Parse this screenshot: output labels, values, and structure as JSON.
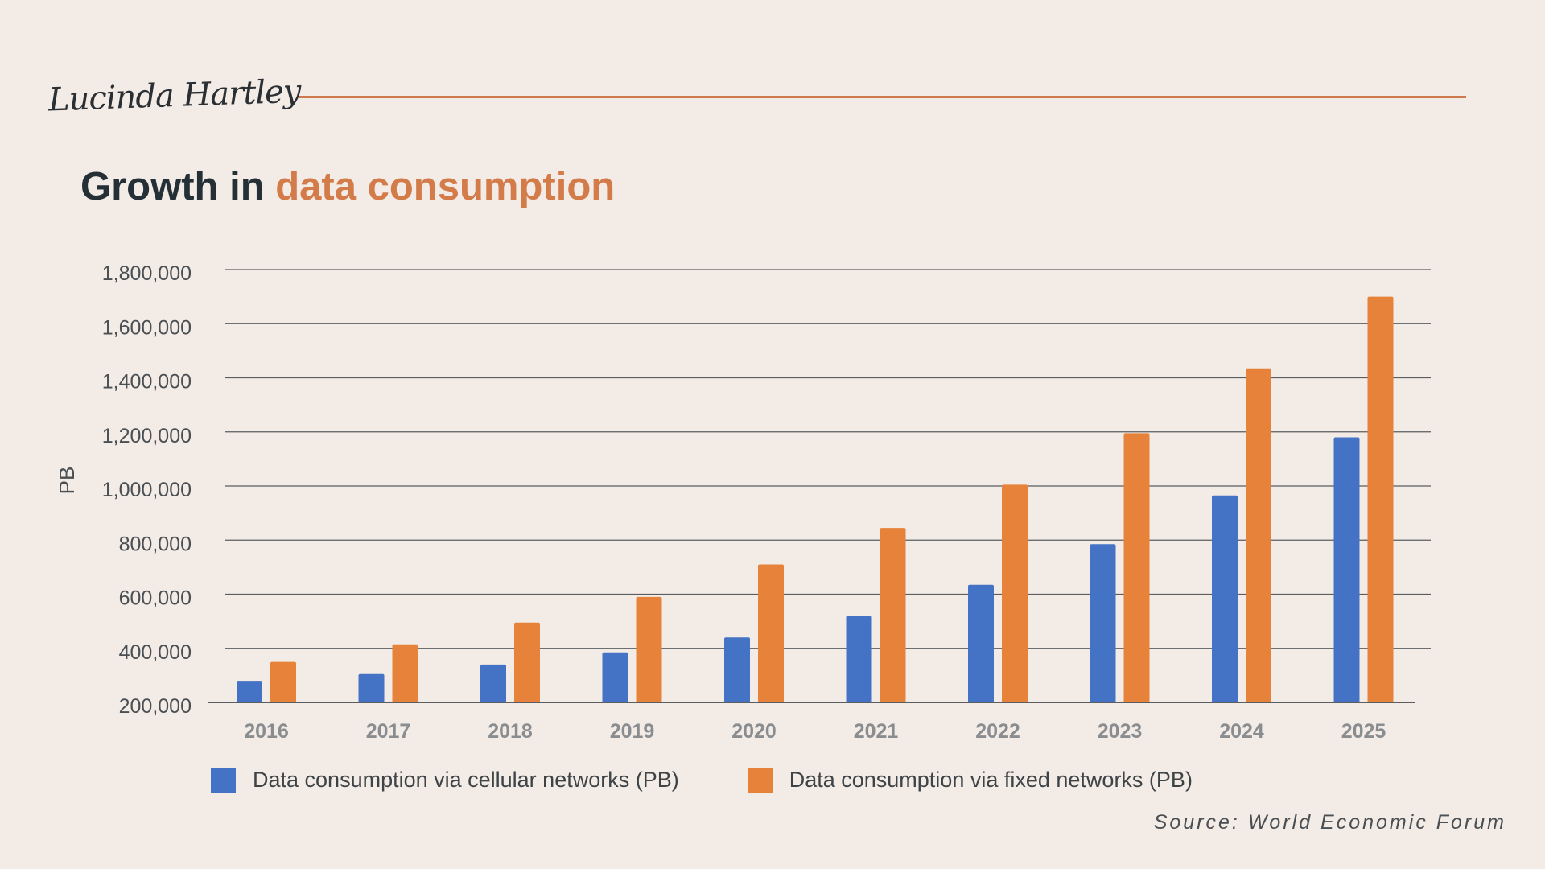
{
  "header": {
    "signature": "Lucinda Hartley"
  },
  "title": {
    "part1": "Growth in ",
    "part2": "data consumption"
  },
  "colors": {
    "cellular": "#4472c4",
    "fixed": "#e6823a",
    "title_accent": "#d37b49",
    "rule": "#cf7a4c"
  },
  "chart_data": {
    "type": "bar",
    "ylabel": "PB",
    "xlabel": "",
    "ylim": [
      200000,
      1800000
    ],
    "yticks": [
      "1,800,000",
      "1,600,000",
      "1,400,000",
      "1,200,000",
      "1,000,000",
      "800,000",
      "600,000",
      "400,000",
      "200,000"
    ],
    "ytick_values": [
      1800000,
      1600000,
      1400000,
      1200000,
      1000000,
      800000,
      600000,
      400000,
      200000
    ],
    "categories": [
      "2016",
      "2017",
      "2018",
      "2019",
      "2020",
      "2021",
      "2022",
      "2023",
      "2024",
      "2025"
    ],
    "series": [
      {
        "name": "Data consumption via cellular networks (PB)",
        "values": [
          280000,
          305000,
          340000,
          385000,
          440000,
          520000,
          635000,
          785000,
          965000,
          1180000
        ]
      },
      {
        "name": "Data consumption via fixed networks (PB)",
        "values": [
          350000,
          415000,
          495000,
          590000,
          710000,
          845000,
          1005000,
          1195000,
          1435000,
          1700000
        ]
      }
    ],
    "grid": true,
    "legend_position": "bottom"
  },
  "source": "Source: World Economic Forum"
}
